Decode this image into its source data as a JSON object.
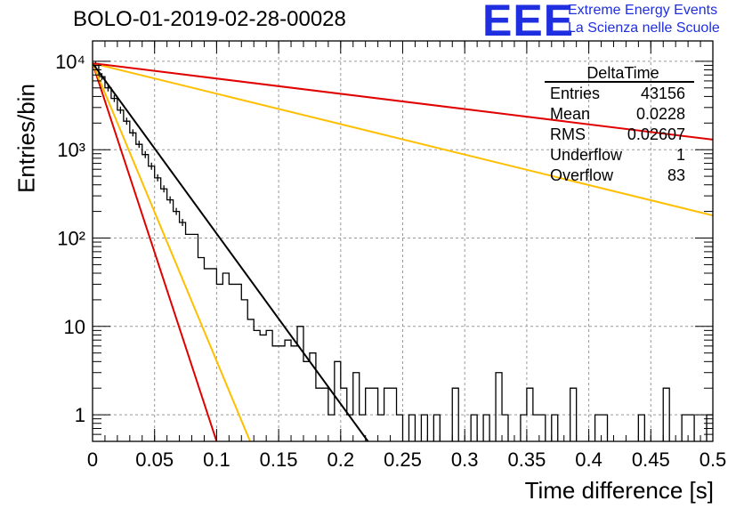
{
  "header": {
    "title": "BOLO-01-2019-02-28-00028",
    "logo_text": "EEE",
    "logo_line1": "Extreme Energy Events",
    "logo_line2": "La Scienza nelle Scuole"
  },
  "stats_box": {
    "title": "DeltaTime",
    "rows": [
      {
        "label": "Entries",
        "value": "43156"
      },
      {
        "label": "Mean",
        "value": "0.0228"
      },
      {
        "label": "RMS",
        "value": "0.02607"
      },
      {
        "label": "Underflow",
        "value": "1"
      },
      {
        "label": "Overflow",
        "value": "83"
      }
    ]
  },
  "chart_data": {
    "type": "line",
    "xlabel": "Time difference [s]",
    "ylabel": "Entries/bin",
    "xlim": [
      0,
      0.5
    ],
    "ylim": [
      0.5,
      17000
    ],
    "yscale": "log",
    "grid": true,
    "x_ticks": [
      "0",
      "0.05",
      "0.1",
      "0.15",
      "0.2",
      "0.25",
      "0.3",
      "0.35",
      "0.4",
      "0.45",
      "0.5"
    ],
    "y_ticks": [
      {
        "value": 1,
        "label": "1"
      },
      {
        "value": 10,
        "label": "10"
      },
      {
        "value": 100,
        "label": "10²"
      },
      {
        "value": 1000,
        "label": "10³"
      },
      {
        "value": 10000,
        "label": "10⁴"
      }
    ],
    "histogram": {
      "bin_width": 0.005,
      "color": "#000000",
      "values": [
        9000,
        6700,
        5000,
        3800,
        2800,
        2100,
        1550,
        1150,
        880,
        650,
        480,
        360,
        270,
        200,
        150,
        110,
        110,
        60,
        45,
        45,
        30,
        40,
        30,
        30,
        20,
        12,
        9,
        8,
        9,
        6,
        6,
        7,
        6,
        10,
        4,
        5,
        2,
        2,
        1,
        4,
        2,
        1,
        3,
        1,
        2,
        2,
        1,
        2,
        2,
        1,
        0,
        1,
        0,
        1,
        0,
        1,
        0,
        0,
        2,
        0,
        0,
        1,
        0,
        1,
        0,
        3,
        1,
        0,
        0,
        1,
        2,
        1,
        1,
        0,
        1,
        0,
        0,
        2,
        0,
        0,
        0,
        1,
        1,
        0,
        0,
        0,
        0,
        0,
        1,
        0,
        0,
        0,
        2,
        0,
        0,
        1,
        1,
        0,
        0,
        1
      ]
    },
    "series": [
      {
        "color": "#e00000",
        "values": [
          [
            0,
            9500
          ],
          [
            0.1,
            0.5
          ]
        ]
      },
      {
        "color": "#ffbf00",
        "values": [
          [
            0,
            9500
          ],
          [
            0.127,
            0.5
          ]
        ]
      },
      {
        "color": "#000000",
        "values": [
          [
            0,
            9500
          ],
          [
            0.222,
            0.5
          ]
        ]
      },
      {
        "color": "#ffbf00",
        "values": [
          [
            0,
            9500
          ],
          [
            0.5,
            180
          ]
        ]
      },
      {
        "color": "#e00000",
        "values": [
          [
            0,
            9500
          ],
          [
            0.5,
            1300
          ]
        ]
      }
    ]
  }
}
